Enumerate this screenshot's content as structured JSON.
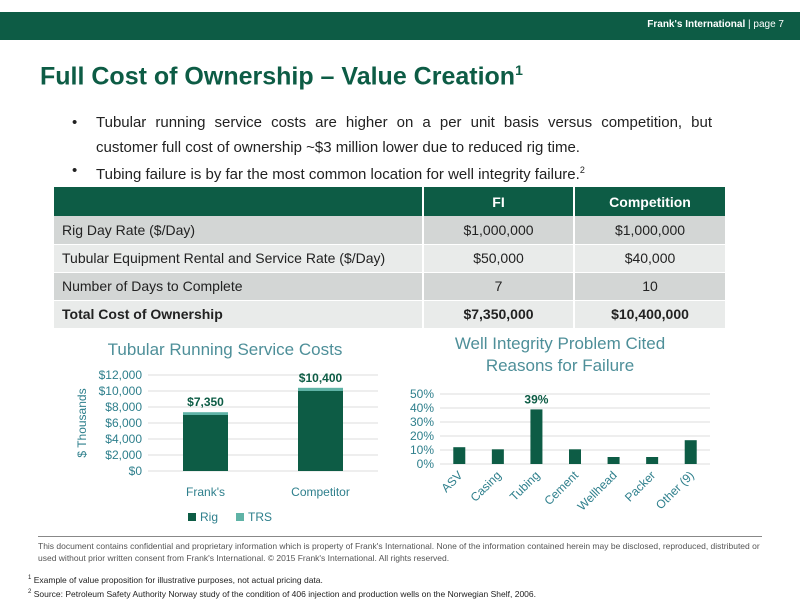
{
  "header": {
    "company": "Frank's International",
    "page_label": "page 7"
  },
  "title": {
    "text": "Full Cost of Ownership – Value Creation",
    "sup": "1"
  },
  "bullets": [
    {
      "text": "Tubular running service costs are higher on a per unit basis versus competition, but customer full cost of ownership ~$3 million lower due to reduced rig time.",
      "sup": ""
    },
    {
      "text": "Tubing failure is by far the most common location for well integrity failure.",
      "sup": "2"
    }
  ],
  "table": {
    "headers": [
      "",
      "FI",
      "Competition"
    ],
    "rows": [
      [
        "Rig Day Rate ($/Day)",
        "$1,000,000",
        "$1,000,000"
      ],
      [
        "Tubular Equipment Rental and Service Rate ($/Day)",
        "$50,000",
        "$40,000"
      ],
      [
        "Number of Days to Complete",
        "7",
        "10"
      ],
      [
        "Total Cost of Ownership",
        "$7,350,000",
        "$10,400,000"
      ]
    ]
  },
  "chart_data": [
    {
      "type": "bar",
      "stacked": true,
      "title": "Tubular Running Service Costs",
      "ylabel": "$ Thousands",
      "xlabel": "",
      "categories": [
        "Frank's",
        "Competitor"
      ],
      "series": [
        {
          "name": "Rig",
          "values": [
            7000,
            10000
          ],
          "color": "#0d5c45"
        },
        {
          "name": "TRS",
          "values": [
            350,
            400
          ],
          "color": "#5fb3a6"
        }
      ],
      "data_labels": [
        "$7,350",
        "$10,400"
      ],
      "ylim": [
        0,
        12000
      ],
      "yticks": [
        "$0",
        "$2,000",
        "$4,000",
        "$6,000",
        "$8,000",
        "$10,000",
        "$12,000"
      ],
      "grid": true,
      "legend": "bottom"
    },
    {
      "type": "bar",
      "title": "Well Integrity Problem Cited\nReasons for Failure",
      "xlabel": "",
      "ylabel": "",
      "categories": [
        "ASV",
        "Casing",
        "Tubing",
        "Cement",
        "Wellhead",
        "Packer",
        "Other (9)"
      ],
      "values": [
        12,
        10.5,
        39,
        10.5,
        5,
        5,
        17
      ],
      "data_labels": [
        "",
        "",
        "39%",
        "",
        "",
        "",
        ""
      ],
      "ylim": [
        0,
        50
      ],
      "yticks": [
        "0%",
        "10%",
        "20%",
        "30%",
        "40%",
        "50%"
      ],
      "grid": true,
      "colors": {
        "bar": "#0d5c45"
      }
    }
  ],
  "footer": {
    "disclaimer": "This document contains confidential and proprietary information which is property of Frank's International. None of the information contained herein may be disclosed, reproduced, distributed or used without prior written consent from Frank's International. © 2015 Frank's International. All rights reserved.",
    "notes": [
      {
        "num": "1",
        "text": "Example of value proposition for illustrative purposes, not actual pricing data."
      },
      {
        "num": "2",
        "text": "Source: Petroleum Safety Authority Norway study of the condition of 406 injection and production wells on the Norwegian Shelf, 2006."
      }
    ]
  },
  "colors": {
    "brand": "#0d5c45",
    "accent_light": "#5fb3a6",
    "chart_text": "#2e7f8c"
  }
}
